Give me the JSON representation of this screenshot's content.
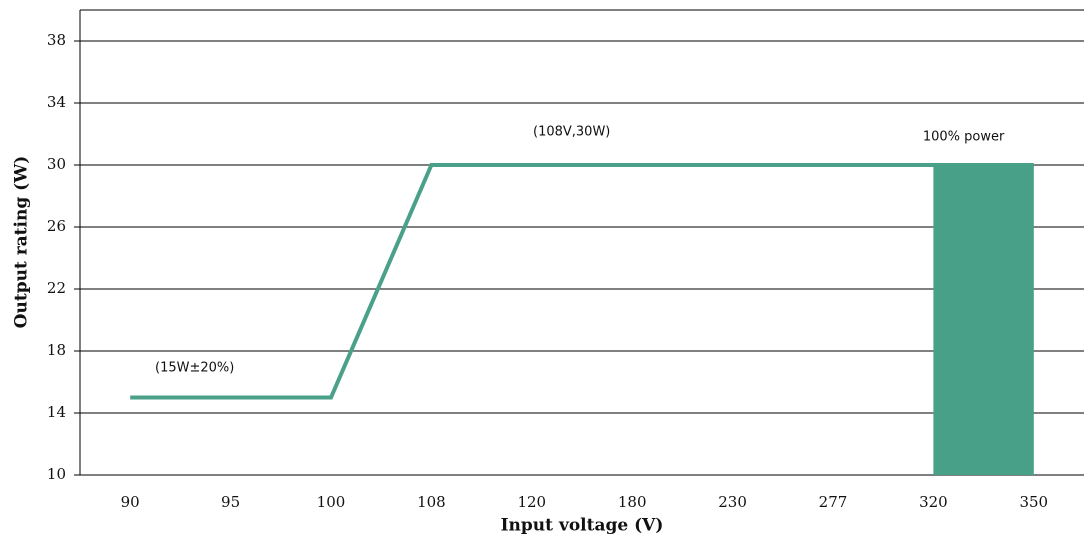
{
  "chart_data": {
    "type": "line",
    "x_label": "Input voltage (V)",
    "y_label": "Output rating (W)",
    "categories": [
      "90",
      "95",
      "100",
      "108",
      "120",
      "180",
      "230",
      "277",
      "320",
      "350"
    ],
    "series": [
      {
        "color": "#4aa088",
        "values": [
          15,
          15,
          15,
          30,
          30,
          30,
          30,
          30,
          30,
          30
        ]
      }
    ],
    "region": {
      "label": "100% power",
      "x_range": [
        "320",
        "350"
      ],
      "value": 30,
      "color": "#48a088"
    },
    "annotations": [
      "(15W±20%)",
      "(108V,30W)"
    ],
    "ylim": [
      10,
      40
    ],
    "yticks": [
      10,
      14,
      18,
      22,
      26,
      30,
      34,
      38
    ],
    "grid": true
  }
}
